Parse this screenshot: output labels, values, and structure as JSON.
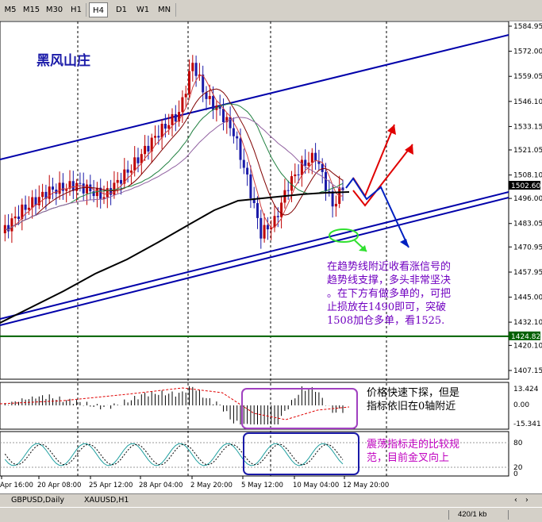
{
  "toolbar": {
    "timeframes": [
      {
        "label": "M5",
        "active": false
      },
      {
        "label": "M15",
        "active": false
      },
      {
        "label": "M30",
        "active": false
      },
      {
        "label": "H1",
        "active": false
      },
      {
        "label": "H4",
        "active": true
      },
      {
        "label": "D1",
        "active": false
      },
      {
        "label": "W1",
        "active": false
      },
      {
        "label": "MN",
        "active": false
      }
    ]
  },
  "chart": {
    "watermark": "黑风山庄",
    "price_labels": [
      "1584.95",
      "1572.00",
      "1559.05",
      "1546.10",
      "1533.15",
      "1521.05",
      "1508.10",
      "1496.00",
      "1483.05",
      "1470.95",
      "1457.95",
      "1445.00",
      "1432.10",
      "1420.10",
      "1407.15"
    ],
    "current_price_box": "1502.60",
    "line_price_box": "1424.82",
    "date_labels": [
      "Apr 16:00",
      "20 Apr 08:00",
      "25 Apr 12:00",
      "28 Apr 04:00",
      "2 May 20:00",
      "5 May 12:00",
      "10 May 04:00",
      "12 May 20:00"
    ],
    "macd_labels": [
      "13.424",
      "0.00",
      "-15.341"
    ],
    "stoch_labels": [
      "80",
      "20",
      "0"
    ],
    "annotation_main": [
      "在趋势线附近收看涨信号的",
      "趋势线支撑，多头非常坚决",
      "。在下方有做多单的，可把",
      "止损放在1490即可，突破",
      "1508加仓多单，看1525."
    ],
    "annotation_macd": [
      "价格快速下探，但是",
      "指标依旧在0轴附近"
    ],
    "annotation_stoch": [
      "震荡指标走的比较规",
      "范，目前金叉向上"
    ],
    "colors": {
      "up_candle": "#c00000",
      "down_candle": "#1a1aa8",
      "trendline": "#0000aa",
      "ma_black": "#000000",
      "ma_dark_red": "#800000",
      "annotation_text": "#7000c0",
      "stoch_text": "#c000c0",
      "hline": "#006000",
      "arrow_red": "#e00000",
      "arrow_blue": "#0020c0"
    }
  },
  "tabs": [
    "GBPUSD,Daily",
    "XAUUSD,H1"
  ],
  "status": {
    "text": "420/1 kb"
  }
}
